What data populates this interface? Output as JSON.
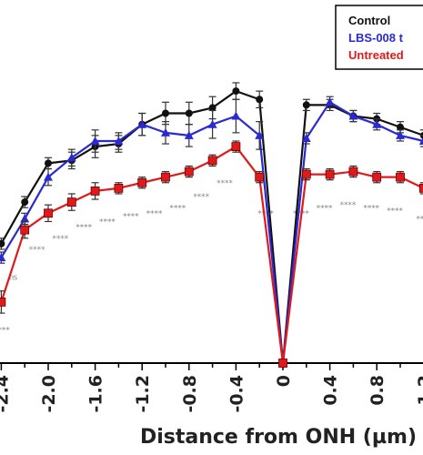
{
  "chart_data": {
    "type": "line",
    "title": "",
    "xlabel": "Distance from ONH (µm)",
    "ylabel": "",
    "xlim": [
      -2.6,
      1.4
    ],
    "ylim": [
      0,
      100
    ],
    "xticks": [
      "-2.4",
      "-2.0",
      "-1.6",
      "-1.2",
      "-0.8",
      "-0.4",
      "0",
      "0.4",
      "0.8",
      "1.2"
    ],
    "legend": {
      "placement": "top-right",
      "entries": [
        "Control",
        "LBS-008 t",
        "Untreated"
      ]
    },
    "series": [
      {
        "name": "Control",
        "color": "#111111",
        "marker": "circle",
        "x": [
          -2.4,
          -2.2,
          -2.0,
          -1.8,
          -1.6,
          -1.4,
          -1.2,
          -1.0,
          -0.8,
          -0.6,
          -0.4,
          -0.2,
          0,
          0.2,
          0.4,
          0.6,
          0.8,
          1.0,
          1.2,
          1.4
        ],
        "y": [
          43,
          58,
          72,
          73,
          78,
          79,
          86,
          90,
          90,
          92,
          98,
          95,
          0,
          93,
          93,
          89,
          88,
          85,
          82,
          79
        ],
        "err": [
          2,
          2,
          2,
          3,
          4,
          3,
          4,
          4,
          4,
          4,
          3,
          3,
          0,
          2,
          2,
          2,
          2,
          2,
          2,
          2
        ]
      },
      {
        "name": "LBS-008 t",
        "color": "#2a2ad0",
        "marker": "triangle",
        "x": [
          -2.4,
          -2.2,
          -2.0,
          -1.8,
          -1.6,
          -1.4,
          -1.2,
          -1.0,
          -0.8,
          -0.6,
          -0.4,
          -0.2,
          0,
          0.2,
          0.4,
          0.6,
          0.8,
          1.0,
          1.2,
          1.4
        ],
        "y": [
          38,
          52,
          67,
          74,
          80,
          80,
          86,
          83,
          82,
          86,
          89,
          82,
          0,
          81,
          94,
          89,
          86,
          82,
          80,
          77
        ],
        "err": [
          2,
          2,
          3,
          3,
          4,
          3,
          4,
          4,
          4,
          5,
          6,
          5,
          0,
          2,
          2,
          2,
          2,
          2,
          2,
          2
        ]
      },
      {
        "name": "Untreated",
        "color": "#e01a1a",
        "marker": "square",
        "x": [
          -2.4,
          -2.2,
          -2.0,
          -1.8,
          -1.6,
          -1.4,
          -1.2,
          -1.0,
          -0.8,
          -0.6,
          -0.4,
          -0.2,
          0,
          0.2,
          0.4,
          0.6,
          0.8,
          1.0,
          1.2,
          1.4
        ],
        "y": [
          22,
          48,
          54,
          58,
          62,
          63,
          65,
          67,
          69,
          73,
          78,
          67,
          0,
          68,
          68,
          69,
          67,
          67,
          63,
          61
        ],
        "err": [
          4,
          3,
          3,
          3,
          3,
          2,
          2,
          2,
          2,
          2,
          2,
          2,
          0,
          2,
          2,
          2,
          2,
          2,
          2,
          2
        ]
      }
    ],
    "annotations": [
      {
        "text": "****",
        "x": -2.4,
        "y": 11
      },
      {
        "text": "ns",
        "x": -2.3,
        "y": 30
      },
      {
        "text": "****",
        "x": -2.1,
        "y": 40
      },
      {
        "text": "****",
        "x": -1.9,
        "y": 44
      },
      {
        "text": "****",
        "x": -1.7,
        "y": 48
      },
      {
        "text": "****",
        "x": -1.5,
        "y": 50
      },
      {
        "text": "****",
        "x": -1.3,
        "y": 52
      },
      {
        "text": "****",
        "x": -1.1,
        "y": 53
      },
      {
        "text": "****",
        "x": -0.9,
        "y": 55
      },
      {
        "text": "****",
        "x": -0.7,
        "y": 59
      },
      {
        "text": "****",
        "x": -0.5,
        "y": 64
      },
      {
        "text": "****",
        "x": -0.15,
        "y": 53
      },
      {
        "text": "****",
        "x": 0.15,
        "y": 53
      },
      {
        "text": "****",
        "x": 0.35,
        "y": 55
      },
      {
        "text": "****",
        "x": 0.55,
        "y": 56
      },
      {
        "text": "****",
        "x": 0.75,
        "y": 55
      },
      {
        "text": "****",
        "x": 0.95,
        "y": 54
      },
      {
        "text": "****",
        "x": 1.2,
        "y": 51
      }
    ]
  }
}
